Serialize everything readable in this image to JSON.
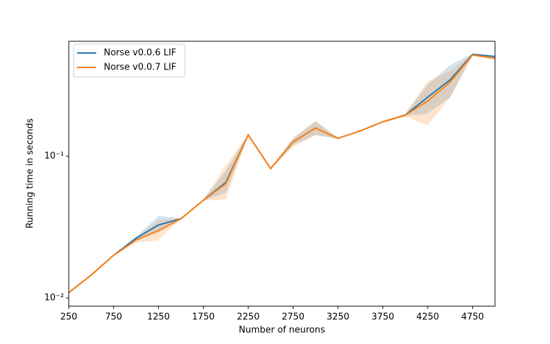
{
  "chart_data": {
    "type": "line",
    "x_label": "Number of neurons",
    "y_label": "Running time in seconds",
    "log_y": true,
    "legend": "upper left",
    "x": [
      250,
      500,
      750,
      1000,
      1250,
      1500,
      1750,
      2000,
      2250,
      2500,
      2750,
      3000,
      3250,
      3500,
      3750,
      4000,
      4250,
      4500,
      4750,
      5000
    ],
    "series": [
      {
        "name": "Norse v0.0.6 LIF",
        "color": "#1f77b4",
        "values": [
          0.0109,
          0.0145,
          0.02,
          0.0264,
          0.0327,
          0.0362,
          0.0489,
          0.0654,
          0.1413,
          0.0818,
          0.1264,
          0.158,
          0.1337,
          0.151,
          0.175,
          0.195,
          0.261,
          0.346,
          0.523,
          0.506
        ],
        "lower": [
          0.0108,
          0.0144,
          0.0198,
          0.0255,
          0.029,
          0.036,
          0.0485,
          0.0553,
          0.14,
          0.081,
          0.12,
          0.141,
          0.1325,
          0.15,
          0.173,
          0.192,
          0.2,
          0.26,
          0.515,
          0.49
        ],
        "upper": [
          0.011,
          0.0146,
          0.0202,
          0.027,
          0.0379,
          0.0365,
          0.0495,
          0.079,
          0.143,
          0.0825,
          0.133,
          0.177,
          0.135,
          0.152,
          0.177,
          0.198,
          0.32,
          0.44,
          0.53,
          0.512
        ]
      },
      {
        "name": "Norse v0.0.7 LIF",
        "color": "#ff7f0e",
        "values": [
          0.0109,
          0.0145,
          0.02,
          0.0256,
          0.0299,
          0.0362,
          0.0489,
          0.064,
          0.1413,
          0.0818,
          0.1264,
          0.158,
          0.1337,
          0.151,
          0.175,
          0.195,
          0.245,
          0.334,
          0.518,
          0.49
        ],
        "lower": [
          0.0108,
          0.0144,
          0.0198,
          0.0245,
          0.0256,
          0.036,
          0.0485,
          0.0495,
          0.14,
          0.081,
          0.116,
          0.141,
          0.1325,
          0.15,
          0.173,
          0.19,
          0.165,
          0.26,
          0.51,
          0.48
        ],
        "upper": [
          0.011,
          0.0146,
          0.0202,
          0.0265,
          0.0354,
          0.0365,
          0.0495,
          0.0865,
          0.143,
          0.0825,
          0.135,
          0.177,
          0.135,
          0.152,
          0.177,
          0.2,
          0.338,
          0.4,
          0.525,
          0.5
        ]
      }
    ],
    "xlim": [
      250,
      5000
    ],
    "xticks": [
      250,
      750,
      1250,
      1750,
      2250,
      2750,
      3250,
      3750,
      4250,
      4750
    ],
    "ylim": [
      0.00875,
      0.647
    ],
    "yticks": [
      {
        "value": 0.01,
        "label": "10⁻²"
      },
      {
        "value": 0.1,
        "label": "10⁻¹"
      }
    ]
  }
}
